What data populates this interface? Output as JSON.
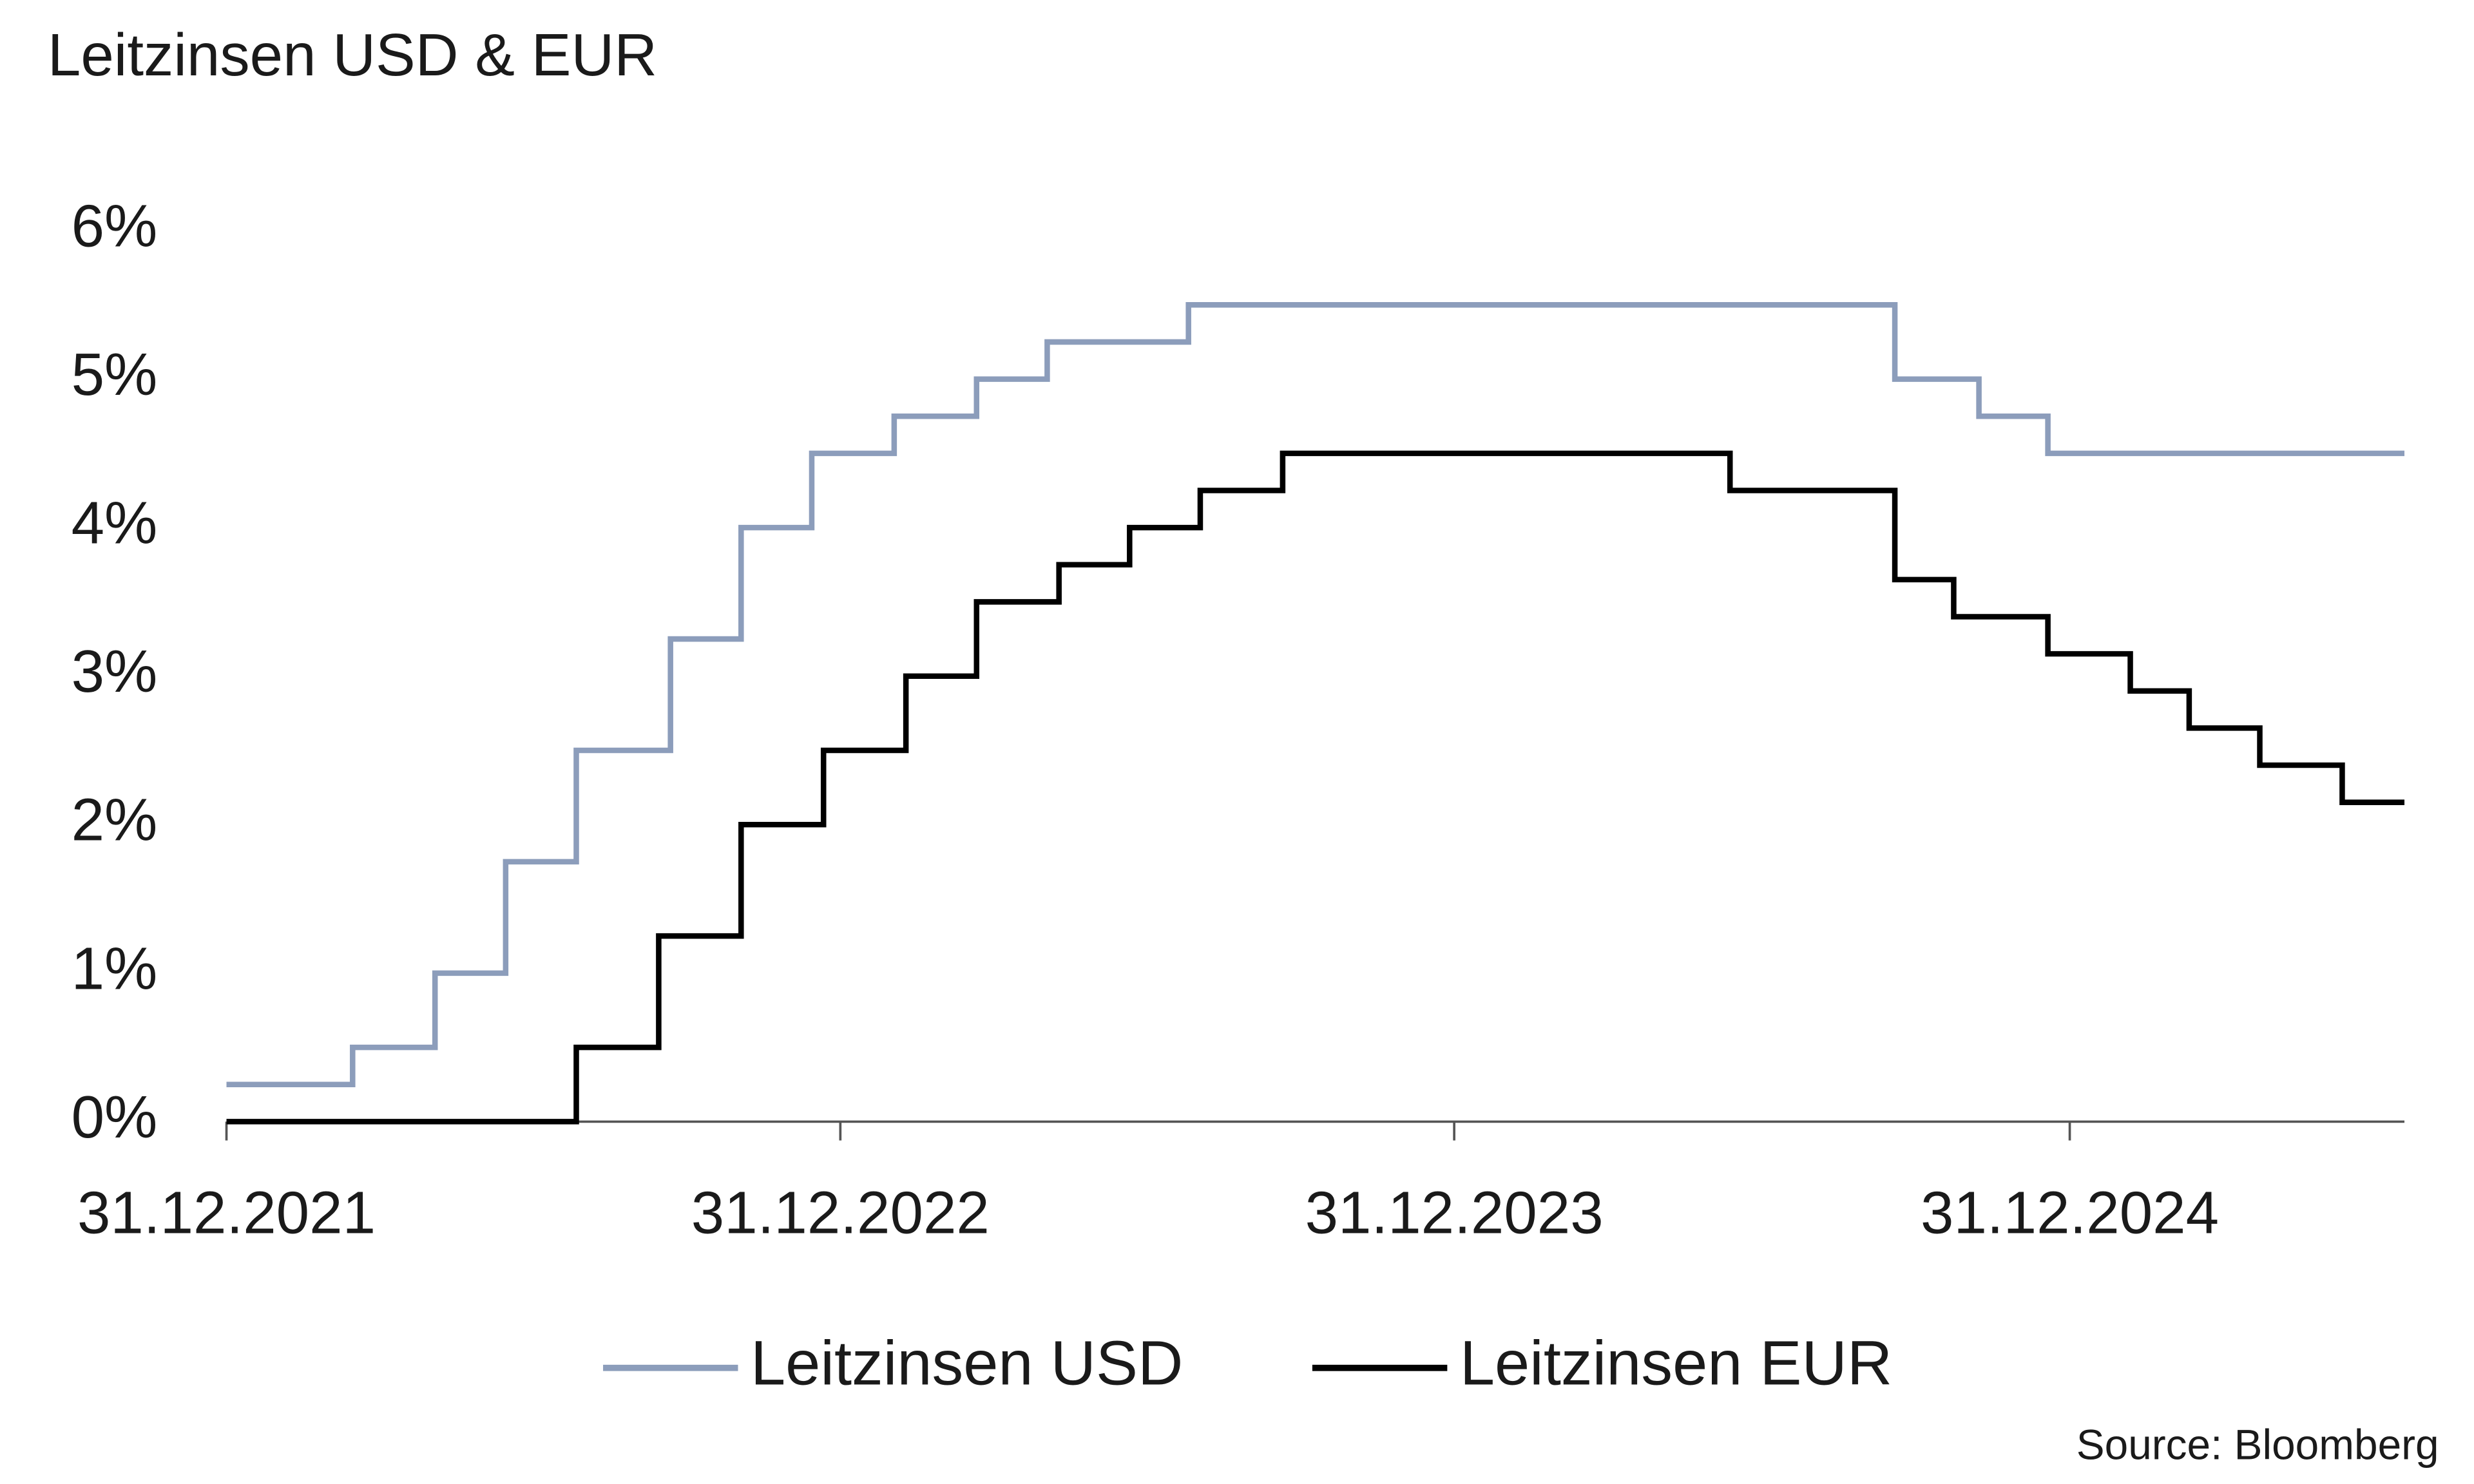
{
  "chart_data": {
    "type": "line",
    "step": "post",
    "title": "Leitzinsen USD & EUR",
    "source": "Source: Bloomberg",
    "series": [
      {
        "name": "Leitzinsen USD",
        "color": "#8c9dbb",
        "x": [
          "2021-12-31",
          "2022-03-16",
          "2022-05-04",
          "2022-06-15",
          "2022-07-27",
          "2022-09-21",
          "2022-11-02",
          "2022-12-14",
          "2023-02-01",
          "2023-03-22",
          "2023-05-03",
          "2023-07-26",
          "2024-09-18",
          "2024-11-07",
          "2024-12-18",
          "2025-07-18"
        ],
        "values": [
          0.25,
          0.5,
          1.0,
          1.75,
          2.5,
          3.25,
          4.0,
          4.5,
          4.75,
          5.0,
          5.25,
          5.5,
          5.0,
          4.75,
          4.5,
          4.5
        ]
      },
      {
        "name": "Leitzinsen EUR",
        "color": "#000000",
        "x": [
          "2021-12-31",
          "2022-07-27",
          "2022-09-14",
          "2022-11-02",
          "2022-12-21",
          "2023-02-08",
          "2023-03-22",
          "2023-05-10",
          "2023-06-21",
          "2023-08-02",
          "2023-09-20",
          "2024-06-12",
          "2024-09-18",
          "2024-10-23",
          "2024-12-18",
          "2025-02-05",
          "2025-03-12",
          "2025-04-23",
          "2025-06-11",
          "2025-07-18"
        ],
        "values": [
          0,
          0.5,
          1.25,
          2.0,
          2.5,
          3.0,
          3.5,
          3.75,
          4.0,
          4.25,
          4.5,
          4.25,
          3.65,
          3.4,
          3.15,
          2.9,
          2.65,
          2.4,
          2.15,
          2.15
        ]
      }
    ],
    "xlim": [
      "2021-12-31",
      "2025-07-18"
    ],
    "xticks": [
      {
        "value": "2021-12-31",
        "label": "31.12.2021"
      },
      {
        "value": "2022-12-31",
        "label": "31.12.2022"
      },
      {
        "value": "2023-12-31",
        "label": "31.12.2023"
      },
      {
        "value": "2024-12-31",
        "label": "31.12.2024"
      }
    ],
    "ylim": [
      0,
      6
    ],
    "yticks": [
      {
        "value": 0,
        "label": "0%"
      },
      {
        "value": 1,
        "label": "1%"
      },
      {
        "value": 2,
        "label": "2%"
      },
      {
        "value": 3,
        "label": "3%"
      },
      {
        "value": 4,
        "label": "4%"
      },
      {
        "value": 5,
        "label": "5%"
      },
      {
        "value": 6,
        "label": "6%"
      }
    ],
    "grid": false,
    "legend": "bottom"
  }
}
